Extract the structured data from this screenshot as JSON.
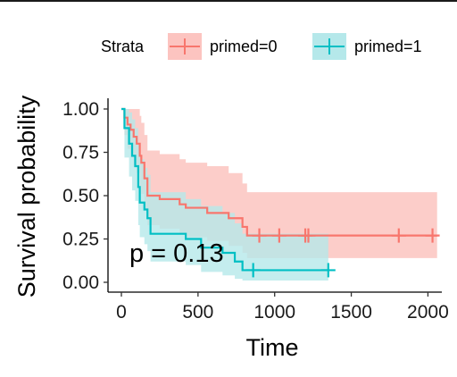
{
  "chart_data": {
    "type": "line",
    "subtype": "kaplan-meier survival curve",
    "xlabel": "Time",
    "ylabel": "Survival probability",
    "xlim": [
      0,
      2050
    ],
    "ylim": [
      0,
      1
    ],
    "x_ticks": [
      0,
      500,
      1000,
      1500,
      2000
    ],
    "y_ticks": [
      0.0,
      0.25,
      0.5,
      0.75,
      1.0
    ],
    "x_tick_labels": [
      "0",
      "500",
      "1000",
      "1500",
      "2000"
    ],
    "y_tick_labels": [
      "0.00",
      "0.25",
      "0.50",
      "0.75",
      "1.00"
    ],
    "grid": false,
    "legend": {
      "title": "Strata",
      "position": "top",
      "entries": [
        "primed=0",
        "primed=1"
      ]
    },
    "annotation": "p = 0.13",
    "series": [
      {
        "name": "primed=0",
        "color": "#F8766D",
        "ci_color": "#FCC4C0",
        "steps": [
          [
            0,
            1.0
          ],
          [
            20,
            0.95
          ],
          [
            40,
            0.91
          ],
          [
            60,
            0.88
          ],
          [
            80,
            0.84
          ],
          [
            100,
            0.8
          ],
          [
            120,
            0.73
          ],
          [
            130,
            0.69
          ],
          [
            150,
            0.6
          ],
          [
            170,
            0.5
          ],
          [
            250,
            0.48
          ],
          [
            380,
            0.45
          ],
          [
            420,
            0.43
          ],
          [
            560,
            0.4
          ],
          [
            700,
            0.37
          ],
          [
            790,
            0.32
          ],
          [
            820,
            0.27
          ],
          [
            2060,
            0.27
          ]
        ],
        "ci_upper": [
          [
            0,
            1.0
          ],
          [
            60,
            1.0
          ],
          [
            120,
            0.96
          ],
          [
            130,
            0.92
          ],
          [
            150,
            0.85
          ],
          [
            170,
            0.76
          ],
          [
            250,
            0.74
          ],
          [
            380,
            0.71
          ],
          [
            420,
            0.69
          ],
          [
            560,
            0.67
          ],
          [
            700,
            0.63
          ],
          [
            790,
            0.57
          ],
          [
            820,
            0.52
          ],
          [
            2060,
            0.52
          ]
        ],
        "ci_lower": [
          [
            0,
            1.0
          ],
          [
            20,
            0.85
          ],
          [
            40,
            0.77
          ],
          [
            60,
            0.72
          ],
          [
            80,
            0.67
          ],
          [
            100,
            0.63
          ],
          [
            120,
            0.55
          ],
          [
            130,
            0.51
          ],
          [
            150,
            0.42
          ],
          [
            170,
            0.33
          ],
          [
            250,
            0.31
          ],
          [
            380,
            0.28
          ],
          [
            420,
            0.26
          ],
          [
            560,
            0.24
          ],
          [
            700,
            0.21
          ],
          [
            790,
            0.17
          ],
          [
            820,
            0.14
          ],
          [
            2060,
            0.14
          ]
        ],
        "censored": [
          900,
          1030,
          1200,
          1220,
          1810,
          2030
        ]
      },
      {
        "name": "primed=1",
        "color": "#00BFC4",
        "ci_color": "#B5E8EA",
        "steps": [
          [
            0,
            1.0
          ],
          [
            20,
            0.89
          ],
          [
            50,
            0.8
          ],
          [
            70,
            0.73
          ],
          [
            90,
            0.67
          ],
          [
            110,
            0.55
          ],
          [
            120,
            0.46
          ],
          [
            150,
            0.42
          ],
          [
            170,
            0.37
          ],
          [
            190,
            0.28
          ],
          [
            420,
            0.25
          ],
          [
            520,
            0.2
          ],
          [
            660,
            0.17
          ],
          [
            740,
            0.12
          ],
          [
            790,
            0.07
          ],
          [
            1350,
            0.07
          ]
        ],
        "ci_upper": [
          [
            0,
            1.0
          ],
          [
            20,
            1.0
          ],
          [
            50,
            0.98
          ],
          [
            70,
            0.94
          ],
          [
            90,
            0.89
          ],
          [
            110,
            0.79
          ],
          [
            120,
            0.71
          ],
          [
            150,
            0.66
          ],
          [
            170,
            0.62
          ],
          [
            190,
            0.52
          ],
          [
            420,
            0.48
          ],
          [
            520,
            0.44
          ],
          [
            660,
            0.4
          ],
          [
            740,
            0.34
          ],
          [
            790,
            0.28
          ],
          [
            1350,
            0.28
          ]
        ],
        "ci_lower": [
          [
            0,
            1.0
          ],
          [
            20,
            0.72
          ],
          [
            50,
            0.61
          ],
          [
            70,
            0.53
          ],
          [
            90,
            0.47
          ],
          [
            110,
            0.33
          ],
          [
            120,
            0.26
          ],
          [
            150,
            0.22
          ],
          [
            170,
            0.18
          ],
          [
            190,
            0.12
          ],
          [
            420,
            0.1
          ],
          [
            520,
            0.06
          ],
          [
            660,
            0.04
          ],
          [
            740,
            0.02
          ],
          [
            790,
            0.01
          ],
          [
            1350,
            0.01
          ]
        ],
        "censored": [
          860,
          1350
        ]
      }
    ]
  }
}
